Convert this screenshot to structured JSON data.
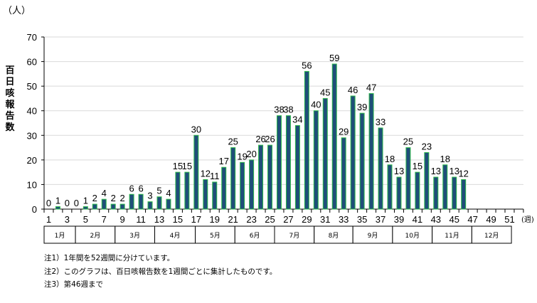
{
  "chart_data": {
    "type": "bar",
    "title": "",
    "xlabel": "(週)",
    "ylabel": "百日咳報告数",
    "yunit": "（人）",
    "ylim": [
      0,
      70
    ],
    "yticks": [
      0,
      10,
      20,
      30,
      40,
      50,
      60,
      70
    ],
    "xlim": [
      1,
      52
    ],
    "xtick_labels": [
      1,
      3,
      5,
      7,
      9,
      11,
      13,
      15,
      17,
      19,
      21,
      23,
      25,
      27,
      29,
      31,
      33,
      35,
      37,
      39,
      41,
      43,
      45,
      47,
      49,
      51
    ],
    "grid": true,
    "bar_fill": "#1f4e79",
    "bar_edge": "#2db84b",
    "weeks": [
      1,
      2,
      3,
      4,
      5,
      6,
      7,
      8,
      9,
      10,
      11,
      12,
      13,
      14,
      15,
      16,
      17,
      18,
      19,
      20,
      21,
      22,
      23,
      24,
      25,
      26,
      27,
      28,
      29,
      30,
      31,
      32,
      33,
      34,
      35,
      36,
      37,
      38,
      39,
      40,
      41,
      42,
      43,
      44,
      45,
      46
    ],
    "values": [
      0,
      1,
      0,
      0,
      1,
      2,
      4,
      2,
      2,
      6,
      6,
      3,
      5,
      4,
      15,
      15,
      30,
      12,
      11,
      17,
      25,
      19,
      20,
      26,
      26,
      38,
      38,
      34,
      56,
      40,
      45,
      59,
      29,
      46,
      39,
      47,
      33,
      18,
      13,
      25,
      15,
      23,
      13,
      18,
      13,
      12
    ],
    "months": [
      {
        "label": "1月",
        "start_week": 1,
        "end_week": 4.4
      },
      {
        "label": "2月",
        "start_week": 4.4,
        "end_week": 8.7
      },
      {
        "label": "3月",
        "start_week": 8.7,
        "end_week": 13
      },
      {
        "label": "4月",
        "start_week": 13,
        "end_week": 17.4
      },
      {
        "label": "5月",
        "start_week": 17.4,
        "end_week": 21.7
      },
      {
        "label": "6月",
        "start_week": 21.7,
        "end_week": 26
      },
      {
        "label": "7月",
        "start_week": 26,
        "end_week": 30.3
      },
      {
        "label": "8月",
        "start_week": 30.3,
        "end_week": 34.5
      },
      {
        "label": "9月",
        "start_week": 34.5,
        "end_week": 38.8
      },
      {
        "label": "10月",
        "start_week": 38.8,
        "end_week": 43.1
      },
      {
        "label": "11月",
        "start_week": 43.1,
        "end_week": 47.4
      },
      {
        "label": "12月",
        "start_week": 47.4,
        "end_week": 51.7
      }
    ]
  },
  "notes": [
    "注1）1年間を52週間に分けています。",
    "注2）このグラフは、百日咳報告数を1週間ごとに集計したものです。",
    "注3）第46週まで"
  ]
}
